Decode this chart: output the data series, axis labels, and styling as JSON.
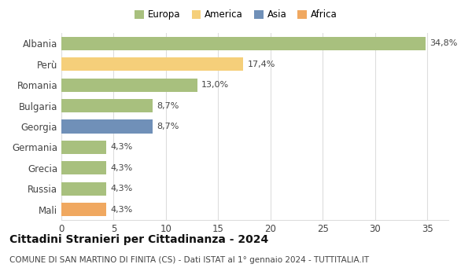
{
  "categories": [
    "Albania",
    "Perù",
    "Romania",
    "Bulgaria",
    "Georgia",
    "Germania",
    "Grecia",
    "Russia",
    "Mali"
  ],
  "values": [
    34.8,
    17.4,
    13.0,
    8.7,
    8.7,
    4.3,
    4.3,
    4.3,
    4.3
  ],
  "labels": [
    "34,8%",
    "17,4%",
    "13,0%",
    "8,7%",
    "8,7%",
    "4,3%",
    "4,3%",
    "4,3%",
    "4,3%"
  ],
  "colors": [
    "#a8c07e",
    "#f5cf7a",
    "#a8c07e",
    "#a8c07e",
    "#7090b8",
    "#a8c07e",
    "#a8c07e",
    "#a8c07e",
    "#f0a860"
  ],
  "legend_labels": [
    "Europa",
    "America",
    "Asia",
    "Africa"
  ],
  "legend_colors": [
    "#a8c07e",
    "#f5cf7a",
    "#7090b8",
    "#f0a860"
  ],
  "title": "Cittadini Stranieri per Cittadinanza - 2024",
  "subtitle": "COMUNE DI SAN MARTINO DI FINITA (CS) - Dati ISTAT al 1° gennaio 2024 - TUTTITALIA.IT",
  "xlim": [
    0,
    37
  ],
  "xticks": [
    0,
    5,
    10,
    15,
    20,
    25,
    30,
    35
  ],
  "bg_color": "#ffffff",
  "grid_color": "#dddddd",
  "bar_height": 0.65,
  "label_fontsize": 8,
  "ytick_fontsize": 8.5,
  "xtick_fontsize": 8.5,
  "legend_fontsize": 8.5,
  "title_fontsize": 10,
  "subtitle_fontsize": 7.5
}
